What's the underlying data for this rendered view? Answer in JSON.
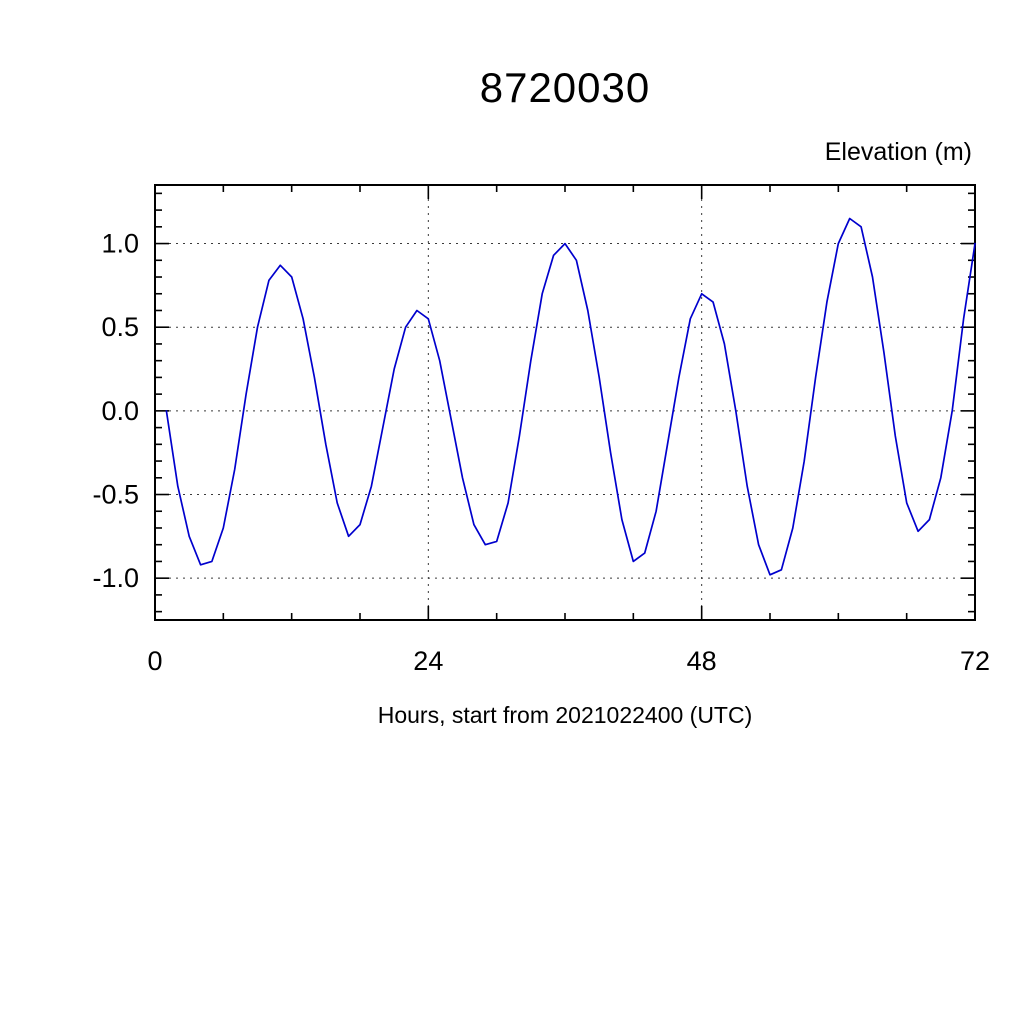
{
  "chart_data": {
    "type": "line",
    "title": "8720030",
    "ylabel": "Elevation (m)",
    "xlabel": "Hours, start from 2021022400 (UTC)",
    "legend": "none",
    "grid": "dashed lines at major x and y ticks",
    "line_color": "#0000cd",
    "frame_color": "#000000",
    "background": "#ffffff",
    "xlim": [
      0,
      72
    ],
    "ylim": [
      -1.25,
      1.35
    ],
    "x_ticks": [
      0,
      24,
      48,
      72
    ],
    "x_tick_labels": [
      "0",
      "24",
      "48",
      "72"
    ],
    "x_minor_step": 6,
    "y_ticks": [
      -1.0,
      -0.5,
      0.0,
      0.5,
      1.0
    ],
    "y_tick_labels": [
      "-1.0",
      "-0.5",
      "0.0",
      "0.5",
      "1.0"
    ],
    "y_minor_step": 0.1,
    "x": [
      1,
      2,
      3,
      4,
      5,
      6,
      7,
      8,
      9,
      10,
      11,
      12,
      13,
      14,
      15,
      16,
      17,
      18,
      19,
      20,
      21,
      22,
      23,
      24,
      25,
      26,
      27,
      28,
      29,
      30,
      31,
      32,
      33,
      34,
      35,
      36,
      37,
      38,
      39,
      40,
      41,
      42,
      43,
      44,
      45,
      46,
      47,
      48,
      49,
      50,
      51,
      52,
      53,
      54,
      55,
      56,
      57,
      58,
      59,
      60,
      61,
      62,
      63,
      64,
      65,
      66,
      67,
      68,
      69,
      70,
      71,
      72
    ],
    "y": [
      0.0,
      -0.45,
      -0.75,
      -0.92,
      -0.9,
      -0.7,
      -0.35,
      0.1,
      0.5,
      0.78,
      0.87,
      0.8,
      0.55,
      0.2,
      -0.2,
      -0.55,
      -0.75,
      -0.68,
      -0.45,
      -0.1,
      0.25,
      0.5,
      0.6,
      0.55,
      0.3,
      -0.05,
      -0.4,
      -0.68,
      -0.8,
      -0.78,
      -0.55,
      -0.15,
      0.3,
      0.7,
      0.93,
      1.0,
      0.9,
      0.6,
      0.2,
      -0.25,
      -0.65,
      -0.9,
      -0.85,
      -0.6,
      -0.2,
      0.2,
      0.55,
      0.7,
      0.65,
      0.4,
      0.0,
      -0.45,
      -0.8,
      -0.98,
      -0.95,
      -0.7,
      -0.3,
      0.2,
      0.65,
      1.0,
      1.15,
      1.1,
      0.8,
      0.35,
      -0.15,
      -0.55,
      -0.72,
      -0.65,
      -0.4,
      0.0,
      0.55,
      1.0
    ]
  }
}
